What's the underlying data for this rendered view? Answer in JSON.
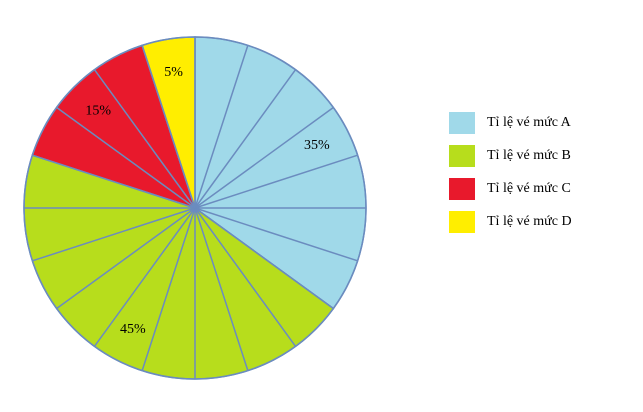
{
  "chart_data": {
    "type": "pie",
    "series": [
      {
        "name": "Tỉ lệ vé mức A",
        "color": "#a0d9e9",
        "values": [
          35
        ],
        "value_labels": [
          "35%"
        ]
      },
      {
        "name": "Tỉ lệ vé mức B",
        "color": "#b7dd1c",
        "values": [
          45
        ],
        "value_labels": [
          "45%"
        ]
      },
      {
        "name": "Tỉ lệ vé mức C",
        "color": "#e8192c",
        "values": [
          15
        ],
        "value_labels": [
          "15%"
        ]
      },
      {
        "name": "Tỉ lệ vé mức D",
        "color": "#ffee00",
        "values": [
          5
        ],
        "value_labels": [
          "5%"
        ]
      }
    ],
    "legend": "right"
  }
}
